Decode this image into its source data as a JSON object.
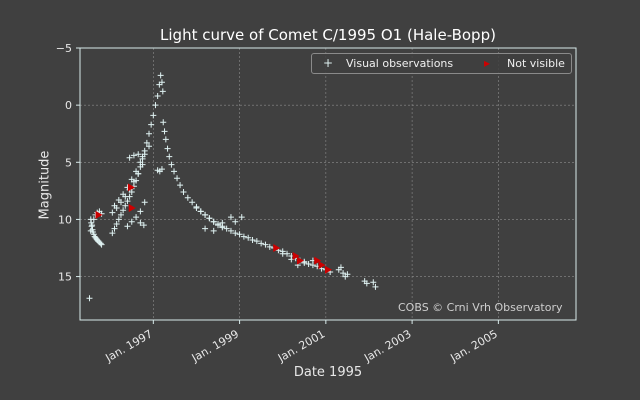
{
  "chart_data": {
    "type": "scatter",
    "title": "Light curve of Comet C/1995 O1 (Hale-Bopp)",
    "xlabel": "Date 1995",
    "ylabel": "Magnitude",
    "xlim": [
      1995.3,
      2006.8
    ],
    "ylim": [
      18.8,
      -5
    ],
    "y_inverted": true,
    "yticks": [
      -5,
      0,
      5,
      10,
      15
    ],
    "ytick_labels": [
      "−5",
      "0",
      "5",
      "10",
      "15"
    ],
    "xticks": [
      1997,
      1999,
      2001,
      2003,
      2005
    ],
    "xtick_labels": [
      "Jan. 1997",
      "Jan. 1999",
      "Jan. 2001",
      "Jan. 2003",
      "Jan. 2005"
    ],
    "grid": true,
    "legend_position": "top-right",
    "credit": "COBS © Crni Vrh Observatory",
    "colors": {
      "visual": "#dff2f2",
      "not_visible": "#cc0000",
      "background": "#404040",
      "axes": "#d8eaea"
    },
    "series": [
      {
        "name": "Visual observations",
        "marker": "+",
        "x": [
          1995.55,
          1995.56,
          1995.57,
          1995.59,
          1995.6,
          1995.62,
          1995.64,
          1995.66,
          1995.68,
          1995.7,
          1995.72,
          1995.75,
          1995.78,
          1995.8,
          1995.55,
          1995.58,
          1995.62,
          1995.66,
          1995.7,
          1995.75,
          1995.8,
          1995.52,
          1996.05,
          1996.1,
          1996.15,
          1996.2,
          1996.25,
          1996.3,
          1996.35,
          1996.4,
          1996.45,
          1996.5,
          1996.55,
          1996.6,
          1996.65,
          1996.7,
          1996.75,
          1996.8,
          1996.85,
          1996.9,
          1996.95,
          1997.0,
          1997.05,
          1997.1,
          1997.14,
          1997.17,
          1997.2,
          1997.22,
          1996.1,
          1996.2,
          1996.3,
          1996.4,
          1996.5,
          1996.6,
          1996.7,
          1996.8,
          1996.9,
          1996.05,
          1996.15,
          1996.25,
          1996.35,
          1996.45,
          1996.55,
          1996.65,
          1996.75,
          1996.4,
          1996.5,
          1996.6,
          1996.7,
          1996.8,
          1996.45,
          1996.55,
          1996.65,
          1996.75,
          1996.7,
          1996.78,
          1997.1,
          1997.15,
          1997.2,
          1997.23,
          1997.26,
          1997.29,
          1997.33,
          1997.37,
          1997.42,
          1997.48,
          1997.55,
          1997.62,
          1997.7,
          1997.8,
          1997.9,
          1998.0,
          1998.1,
          1998.2,
          1998.3,
          1998.4,
          1998.5,
          1998.6,
          1998.7,
          1998.8,
          1998.9,
          1999.0,
          1999.1,
          1999.2,
          1999.3,
          1999.4,
          1999.5,
          1999.6,
          1999.7,
          1999.8,
          1999.9,
          2000.0,
          2000.1,
          2000.2,
          2000.3,
          2000.4,
          2000.5,
          2000.6,
          2000.7,
          2000.8,
          2000.9,
          2001.0,
          2001.1,
          1998.0,
          1998.1,
          1998.2,
          1998.3,
          1998.4,
          1998.5,
          1998.6,
          1998.2,
          1998.4,
          1998.6,
          1998.8,
          1998.9,
          1999.05,
          2000.0,
          2000.2,
          2000.35,
          2000.5,
          2000.7,
          2001.3,
          2001.35,
          2001.4,
          2001.45,
          2001.5,
          2001.9,
          2001.95,
          2002.1,
          2002.15
        ],
        "y": [
          10.0,
          10.3,
          10.6,
          10.9,
          11.1,
          11.3,
          11.5,
          11.6,
          11.7,
          11.8,
          11.9,
          12.0,
          12.1,
          12.2,
          11.0,
          10.5,
          10.0,
          9.6,
          9.4,
          9.3,
          9.5,
          16.9,
          11.2,
          10.8,
          10.4,
          10.0,
          9.6,
          9.2,
          8.8,
          8.4,
          8.0,
          7.6,
          7.1,
          6.6,
          6.0,
          5.4,
          4.7,
          4.0,
          3.3,
          2.5,
          1.7,
          0.9,
          0.0,
          -0.8,
          -1.8,
          -2.6,
          -2.0,
          -1.2,
          8.8,
          8.3,
          7.8,
          7.2,
          6.5,
          5.8,
          5.0,
          4.3,
          3.6,
          9.4,
          9.0,
          8.5,
          8.0,
          7.4,
          6.7,
          6.0,
          5.2,
          10.6,
          10.2,
          9.8,
          9.3,
          8.5,
          4.6,
          4.4,
          4.3,
          4.5,
          10.3,
          10.5,
          5.7,
          5.8,
          5.6,
          1.5,
          2.3,
          3.0,
          3.8,
          4.5,
          5.2,
          5.8,
          6.4,
          7.0,
          7.6,
          8.1,
          8.5,
          8.9,
          9.3,
          9.6,
          9.9,
          10.2,
          10.4,
          10.6,
          10.8,
          11.0,
          11.2,
          11.3,
          11.5,
          11.6,
          11.8,
          11.9,
          12.1,
          12.2,
          12.4,
          12.5,
          12.7,
          12.8,
          13.0,
          13.2,
          13.4,
          13.6,
          13.8,
          13.9,
          14.0,
          14.1,
          14.3,
          14.4,
          14.6,
          9.0,
          9.3,
          9.6,
          9.9,
          10.2,
          10.5,
          10.7,
          10.8,
          11.0,
          10.3,
          9.8,
          10.2,
          9.8,
          13.0,
          13.5,
          14.0,
          13.7,
          13.6,
          14.4,
          14.2,
          14.7,
          15.0,
          14.8,
          15.4,
          15.6,
          15.5,
          15.9
        ]
      },
      {
        "name": "Not visible",
        "marker": ">",
        "x": [
          1995.73,
          1996.48,
          1996.5,
          1999.85,
          2000.3,
          2000.4,
          2000.8,
          2000.9,
          2001.05
        ],
        "y": [
          9.6,
          7.2,
          9.0,
          12.5,
          13.2,
          13.6,
          13.6,
          14.0,
          14.4
        ]
      }
    ]
  }
}
